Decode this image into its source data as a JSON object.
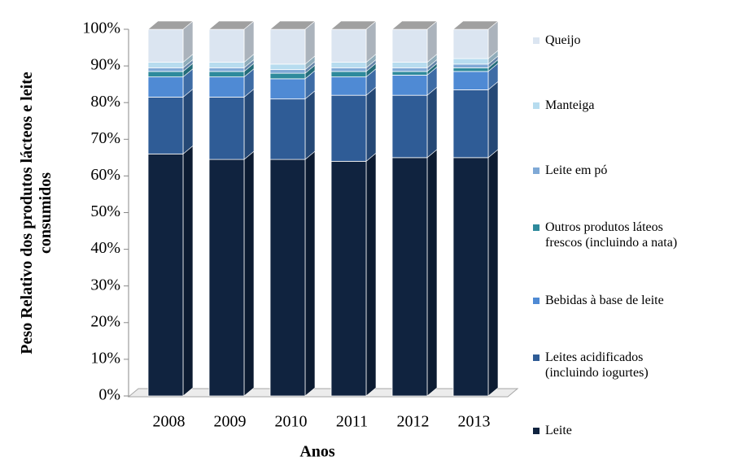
{
  "chart_data": {
    "type": "stacked_bar_3d",
    "x_label": "Anos",
    "y_label": "Peso Relativo dos  produtos lácteos e leite\nconsumidos",
    "categories": [
      "2008",
      "2009",
      "2010",
      "2011",
      "2012",
      "2013"
    ],
    "series": [
      {
        "name": "Leite",
        "color": "#10233f",
        "values": [
          66,
          64.5,
          64.5,
          64,
          65,
          65
        ]
      },
      {
        "name": "Leites acidificados\n(incluindo iogurtes)",
        "color": "#2f5c96",
        "values": [
          15.5,
          17,
          16.5,
          18,
          17,
          18.5
        ]
      },
      {
        "name": "Bebidas à base de leite",
        "color": "#4f8ad4",
        "values": [
          5.5,
          5.5,
          5.5,
          5,
          5.5,
          5
        ]
      },
      {
        "name": "Outros produtos láteos\nfrescos (incluindo a nata)",
        "color": "#2e8a9c",
        "values": [
          1.5,
          1.5,
          1.5,
          1.5,
          1,
          1
        ]
      },
      {
        "name": "Leite em pó",
        "color": "#7fa9d6",
        "values": [
          1,
          1,
          1,
          1,
          1,
          1
        ]
      },
      {
        "name": "Manteiga",
        "color": "#b7dcef",
        "values": [
          1.5,
          1.5,
          1.5,
          1.5,
          1.5,
          1.5
        ]
      },
      {
        "name": "Queijo",
        "color": "#dbe5f1",
        "values": [
          9,
          9,
          9.5,
          9,
          9,
          8
        ]
      }
    ],
    "ylim": [
      0,
      100
    ],
    "yticks": [
      {
        "value": 0,
        "label": "0%"
      },
      {
        "value": 10,
        "label": "10%"
      },
      {
        "value": 20,
        "label": "20%"
      },
      {
        "value": 30,
        "label": "30%"
      },
      {
        "value": 40,
        "label": "40%"
      },
      {
        "value": 50,
        "label": "50%"
      },
      {
        "value": 60,
        "label": "60%"
      },
      {
        "value": 70,
        "label": "70%"
      },
      {
        "value": 80,
        "label": "80%"
      },
      {
        "value": 90,
        "label": "90%"
      },
      {
        "value": 100,
        "label": "100%"
      }
    ],
    "legend": "right"
  }
}
